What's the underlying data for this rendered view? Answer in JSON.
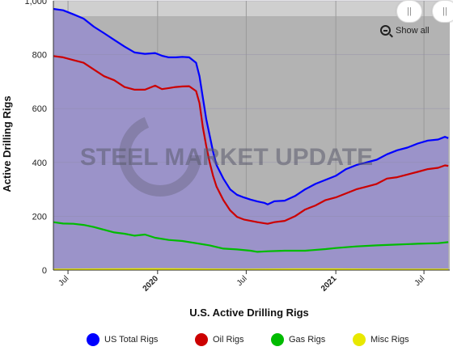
{
  "chart_data": {
    "type": "area",
    "ylabel": "Active Drilling Rigs",
    "xlabel": "U.S. Active Drilling Rigs",
    "ylim": [
      0,
      1000
    ],
    "yticks": [
      0,
      200,
      400,
      600,
      800,
      1000
    ],
    "ytick_labels": [
      "0",
      "200",
      "400",
      "600",
      "800",
      "1,000"
    ],
    "xlim": [
      "2019-06-01",
      "2021-08-23"
    ],
    "xticks": [
      {
        "date": "2019-07-01",
        "label": "Jul",
        "bold": false
      },
      {
        "date": "2020-01-01",
        "label": "2020",
        "bold": true
      },
      {
        "date": "2020-07-01",
        "label": "Jul",
        "bold": false
      },
      {
        "date": "2021-01-01",
        "label": "2021",
        "bold": true
      },
      {
        "date": "2021-07-01",
        "label": "Jul",
        "bold": false
      }
    ],
    "grid": true,
    "legend_position": "bottom",
    "background": "#b3b3b3",
    "watermark": "STEEL MARKET UPDATE",
    "series": [
      {
        "name": "US Total Rigs",
        "color": "#0000ff",
        "points": [
          [
            "2019-06-01",
            970
          ],
          [
            "2019-06-21",
            965
          ],
          [
            "2019-07-12",
            950
          ],
          [
            "2019-08-02",
            934
          ],
          [
            "2019-08-23",
            904
          ],
          [
            "2019-09-13",
            880
          ],
          [
            "2019-10-04",
            855
          ],
          [
            "2019-10-25",
            830
          ],
          [
            "2019-11-15",
            808
          ],
          [
            "2019-12-06",
            803
          ],
          [
            "2019-12-27",
            806
          ],
          [
            "2020-01-10",
            796
          ],
          [
            "2020-01-24",
            790
          ],
          [
            "2020-02-07",
            790
          ],
          [
            "2020-02-21",
            792
          ],
          [
            "2020-03-06",
            790
          ],
          [
            "2020-03-20",
            770
          ],
          [
            "2020-03-27",
            720
          ],
          [
            "2020-04-03",
            640
          ],
          [
            "2020-04-10",
            560
          ],
          [
            "2020-04-17",
            500
          ],
          [
            "2020-04-24",
            440
          ],
          [
            "2020-05-01",
            390
          ],
          [
            "2020-05-15",
            340
          ],
          [
            "2020-05-29",
            300
          ],
          [
            "2020-06-12",
            280
          ],
          [
            "2020-06-26",
            270
          ],
          [
            "2020-07-10",
            262
          ],
          [
            "2020-07-24",
            255
          ],
          [
            "2020-08-07",
            250
          ],
          [
            "2020-08-14",
            244
          ],
          [
            "2020-08-28",
            256
          ],
          [
            "2020-09-18",
            258
          ],
          [
            "2020-10-09",
            275
          ],
          [
            "2020-10-30",
            300
          ],
          [
            "2020-11-20",
            320
          ],
          [
            "2020-12-11",
            335
          ],
          [
            "2021-01-01",
            350
          ],
          [
            "2021-01-22",
            375
          ],
          [
            "2021-02-12",
            390
          ],
          [
            "2021-03-05",
            400
          ],
          [
            "2021-03-26",
            410
          ],
          [
            "2021-04-16",
            430
          ],
          [
            "2021-05-07",
            445
          ],
          [
            "2021-05-28",
            455
          ],
          [
            "2021-06-18",
            470
          ],
          [
            "2021-07-09",
            481
          ],
          [
            "2021-07-30",
            485
          ],
          [
            "2021-08-13",
            495
          ],
          [
            "2021-08-20",
            490
          ]
        ]
      },
      {
        "name": "Oil Rigs",
        "color": "#cc0000",
        "points": [
          [
            "2019-06-01",
            795
          ],
          [
            "2019-06-21",
            790
          ],
          [
            "2019-07-12",
            780
          ],
          [
            "2019-08-02",
            770
          ],
          [
            "2019-08-23",
            745
          ],
          [
            "2019-09-13",
            720
          ],
          [
            "2019-10-04",
            705
          ],
          [
            "2019-10-25",
            680
          ],
          [
            "2019-11-15",
            670
          ],
          [
            "2019-12-06",
            670
          ],
          [
            "2019-12-27",
            685
          ],
          [
            "2020-01-10",
            672
          ],
          [
            "2020-01-24",
            676
          ],
          [
            "2020-02-07",
            680
          ],
          [
            "2020-02-21",
            682
          ],
          [
            "2020-03-06",
            683
          ],
          [
            "2020-03-20",
            665
          ],
          [
            "2020-03-27",
            620
          ],
          [
            "2020-04-03",
            530
          ],
          [
            "2020-04-10",
            460
          ],
          [
            "2020-04-17",
            400
          ],
          [
            "2020-04-24",
            350
          ],
          [
            "2020-05-01",
            310
          ],
          [
            "2020-05-15",
            260
          ],
          [
            "2020-05-29",
            222
          ],
          [
            "2020-06-12",
            198
          ],
          [
            "2020-06-26",
            188
          ],
          [
            "2020-07-10",
            183
          ],
          [
            "2020-07-24",
            178
          ],
          [
            "2020-08-07",
            174
          ],
          [
            "2020-08-14",
            172
          ],
          [
            "2020-08-28",
            178
          ],
          [
            "2020-09-18",
            183
          ],
          [
            "2020-10-09",
            200
          ],
          [
            "2020-10-30",
            225
          ],
          [
            "2020-11-20",
            240
          ],
          [
            "2020-12-11",
            260
          ],
          [
            "2021-01-01",
            270
          ],
          [
            "2021-01-22",
            285
          ],
          [
            "2021-02-12",
            300
          ],
          [
            "2021-03-05",
            310
          ],
          [
            "2021-03-26",
            320
          ],
          [
            "2021-04-16",
            340
          ],
          [
            "2021-05-07",
            345
          ],
          [
            "2021-05-28",
            355
          ],
          [
            "2021-06-18",
            365
          ],
          [
            "2021-07-09",
            375
          ],
          [
            "2021-07-30",
            380
          ],
          [
            "2021-08-13",
            389
          ],
          [
            "2021-08-20",
            387
          ]
        ]
      },
      {
        "name": "Gas Rigs",
        "color": "#00bb00",
        "points": [
          [
            "2019-06-01",
            178
          ],
          [
            "2019-06-21",
            173
          ],
          [
            "2019-07-12",
            172
          ],
          [
            "2019-08-02",
            168
          ],
          [
            "2019-08-23",
            160
          ],
          [
            "2019-09-13",
            150
          ],
          [
            "2019-10-04",
            140
          ],
          [
            "2019-10-25",
            135
          ],
          [
            "2019-11-15",
            128
          ],
          [
            "2019-12-06",
            132
          ],
          [
            "2019-12-27",
            120
          ],
          [
            "2020-01-24",
            112
          ],
          [
            "2020-02-21",
            108
          ],
          [
            "2020-03-20",
            100
          ],
          [
            "2020-04-17",
            92
          ],
          [
            "2020-05-15",
            80
          ],
          [
            "2020-06-12",
            77
          ],
          [
            "2020-07-10",
            72
          ],
          [
            "2020-07-24",
            68
          ],
          [
            "2020-08-14",
            70
          ],
          [
            "2020-09-18",
            72
          ],
          [
            "2020-10-30",
            72
          ],
          [
            "2020-12-11",
            78
          ],
          [
            "2021-01-01",
            82
          ],
          [
            "2021-02-12",
            88
          ],
          [
            "2021-03-26",
            92
          ],
          [
            "2021-05-07",
            95
          ],
          [
            "2021-06-18",
            98
          ],
          [
            "2021-07-30",
            100
          ],
          [
            "2021-08-20",
            104
          ]
        ]
      },
      {
        "name": "Misc Rigs",
        "color": "#e8e800",
        "points": [
          [
            "2019-06-01",
            2
          ],
          [
            "2019-09-13",
            3
          ],
          [
            "2019-12-27",
            4
          ],
          [
            "2020-03-20",
            3
          ],
          [
            "2020-06-26",
            2
          ],
          [
            "2020-10-09",
            3
          ],
          [
            "2021-01-01",
            3
          ],
          [
            "2021-04-16",
            2
          ],
          [
            "2021-08-20",
            2
          ]
        ]
      }
    ]
  },
  "controls": {
    "show_all_label": "Show all",
    "handle_left_label": "||",
    "handle_right_label": "||"
  }
}
